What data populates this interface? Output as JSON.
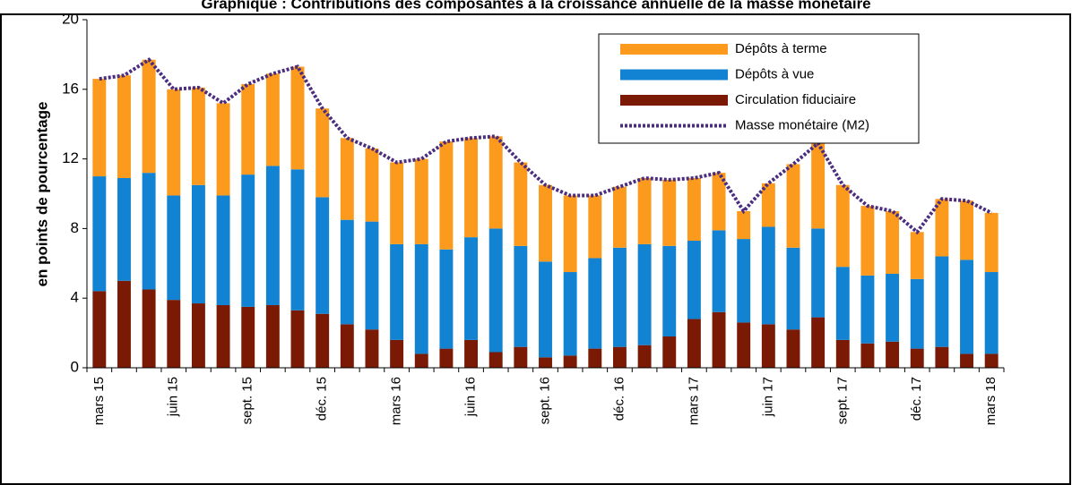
{
  "chart_data": {
    "type": "bar",
    "stacked": true,
    "title": "Graphique : Contributions des composantes à la croissance annuelle de la masse monétaire",
    "y_label": "en points de pourcentage",
    "categories": [
      "mars 15",
      null,
      null,
      "juin 15",
      null,
      null,
      "sept. 15",
      null,
      null,
      "déc. 15",
      null,
      null,
      "mars 16",
      null,
      null,
      "juin 16",
      null,
      null,
      "sept. 16",
      null,
      null,
      "déc. 16",
      null,
      null,
      "mars 17",
      null,
      null,
      "juin 17",
      null,
      null,
      "sept. 17",
      null,
      null,
      "déc. 17",
      null,
      null,
      "mars 18"
    ],
    "ylim": [
      0,
      20
    ],
    "yticks": [
      0,
      4,
      8,
      12,
      16,
      20
    ],
    "legend": "upper right",
    "series": [
      {
        "name": "Circulation fiduciaire",
        "type": "bar",
        "color": "#7a1a04",
        "values": [
          4.4,
          5.0,
          4.5,
          3.9,
          3.7,
          3.6,
          3.5,
          3.6,
          3.3,
          3.1,
          2.5,
          2.2,
          1.6,
          0.8,
          1.1,
          1.6,
          0.9,
          1.2,
          0.6,
          0.7,
          1.1,
          1.2,
          1.3,
          1.8,
          2.8,
          3.2,
          2.6,
          2.5,
          2.2,
          2.9,
          1.6,
          1.4,
          1.5,
          1.1,
          1.2,
          0.8,
          0.8
        ]
      },
      {
        "name": "Dépôts à vue",
        "type": "bar",
        "color": "#1283d2",
        "values": [
          6.6,
          5.9,
          6.7,
          6.0,
          6.8,
          6.3,
          7.6,
          8.0,
          8.1,
          6.7,
          6.0,
          6.2,
          5.5,
          6.3,
          5.7,
          5.9,
          7.1,
          5.8,
          5.5,
          4.8,
          5.2,
          5.7,
          5.8,
          5.2,
          4.5,
          4.7,
          4.8,
          5.6,
          4.7,
          5.1,
          4.2,
          3.9,
          3.9,
          4.0,
          5.2,
          5.4,
          4.7
        ]
      },
      {
        "name": "Dépôts à terme",
        "type": "bar",
        "color": "#fb9a1c",
        "values": [
          5.6,
          5.9,
          6.5,
          6.1,
          5.6,
          5.3,
          5.2,
          5.3,
          5.9,
          5.1,
          4.7,
          4.2,
          4.7,
          4.9,
          6.2,
          5.7,
          5.3,
          4.8,
          4.4,
          4.4,
          3.6,
          3.5,
          3.8,
          3.8,
          3.6,
          3.3,
          1.6,
          2.5,
          4.8,
          4.9,
          4.7,
          4.0,
          3.6,
          2.7,
          3.3,
          3.4,
          3.4
        ]
      },
      {
        "name": "Masse monétaire (M2)",
        "type": "line",
        "color": "#4b2d7f",
        "values": [
          16.6,
          16.8,
          17.7,
          16.0,
          16.1,
          15.2,
          16.3,
          16.9,
          17.3,
          14.9,
          13.2,
          12.6,
          11.8,
          12.0,
          13.0,
          13.2,
          13.3,
          11.8,
          10.5,
          9.9,
          9.9,
          10.4,
          10.9,
          10.8,
          10.9,
          11.2,
          9.0,
          10.6,
          11.7,
          12.9,
          10.5,
          9.3,
          9.0,
          7.8,
          9.7,
          9.6,
          8.9
        ]
      }
    ]
  }
}
